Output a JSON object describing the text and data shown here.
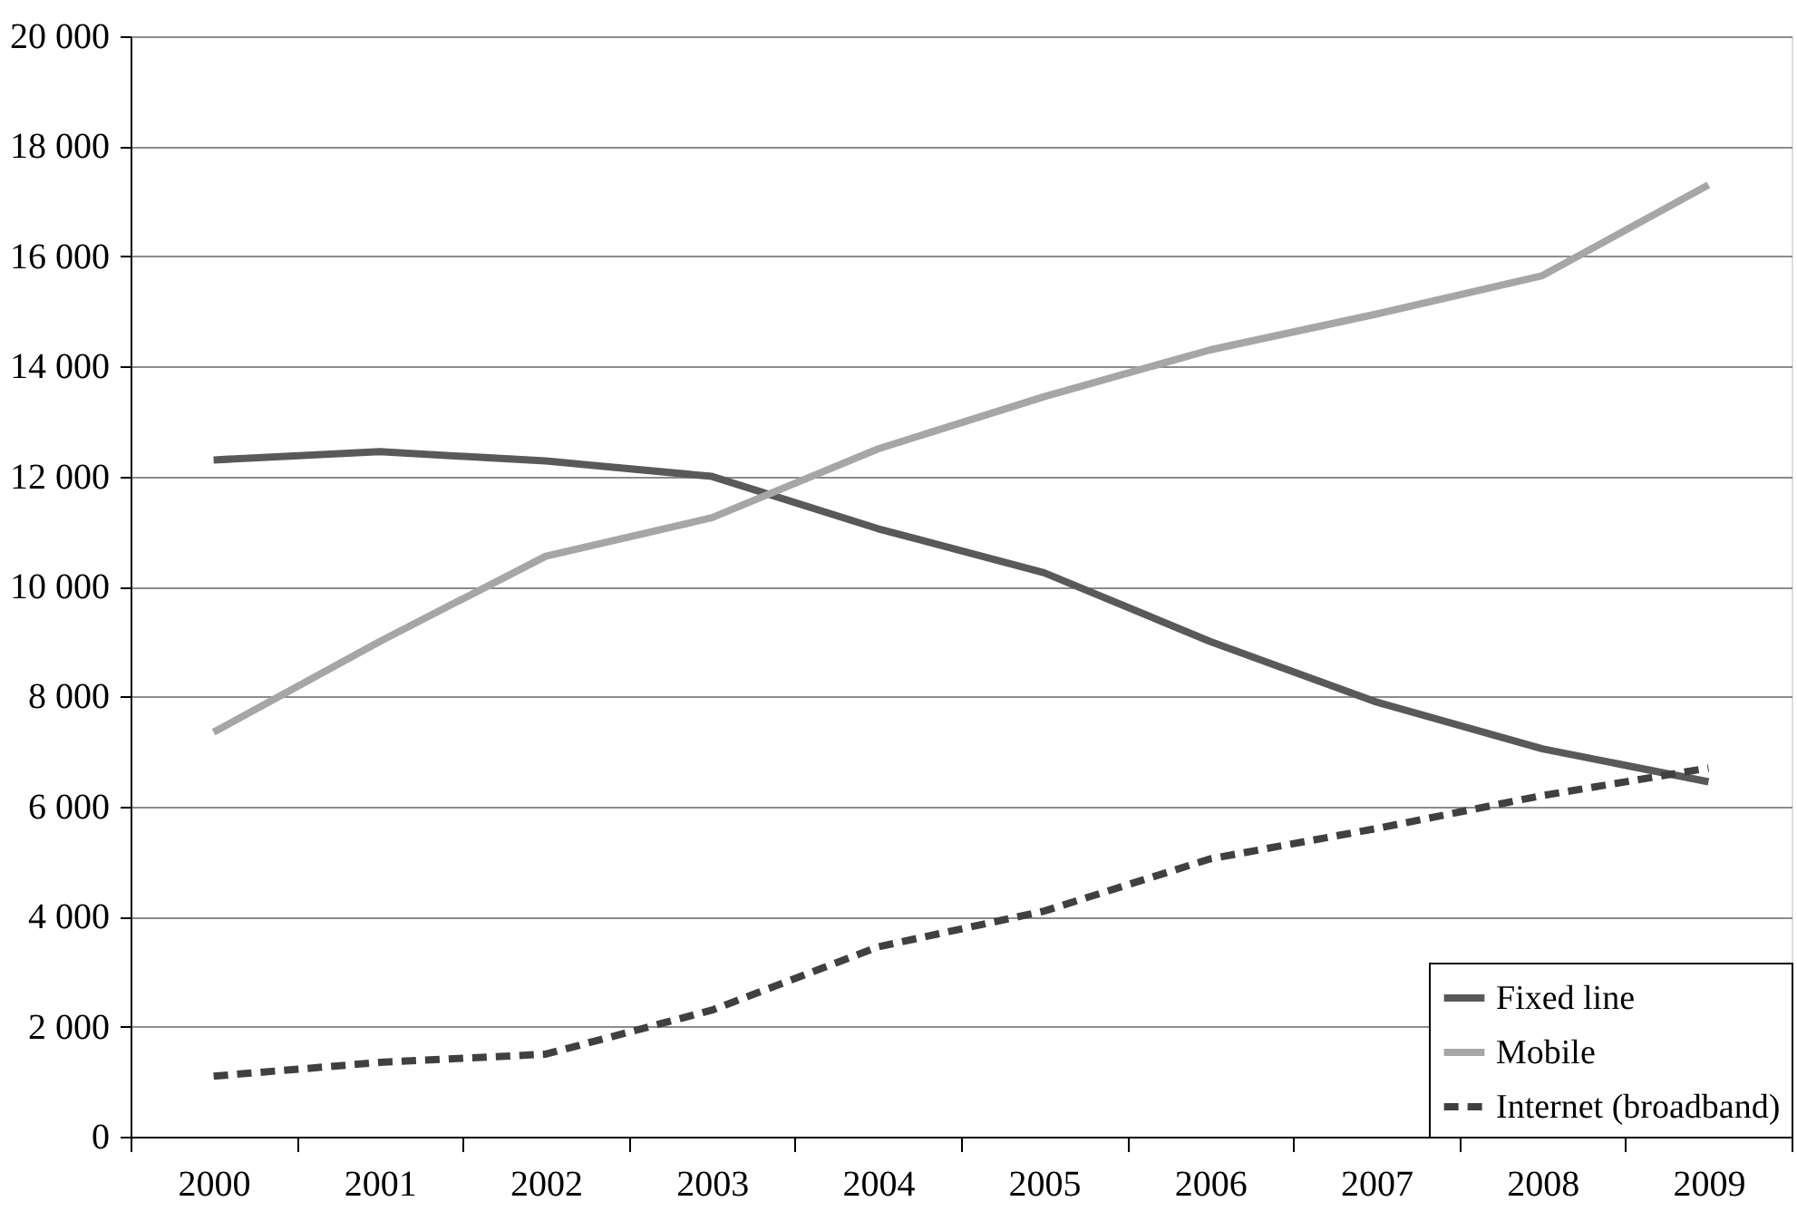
{
  "chart_data": {
    "type": "line",
    "categories": [
      "2000",
      "2001",
      "2002",
      "2003",
      "2004",
      "2005",
      "2006",
      "2007",
      "2008",
      "2009"
    ],
    "series": [
      {
        "name": "Fixed line",
        "color": "#595959",
        "line_style": "solid",
        "values": [
          12300,
          12450,
          12280,
          12000,
          11050,
          10250,
          9000,
          7900,
          7050,
          6450
        ]
      },
      {
        "name": "Mobile",
        "color": "#a6a6a6",
        "line_style": "solid",
        "values": [
          7350,
          9000,
          10550,
          11250,
          12500,
          13450,
          14300,
          14950,
          15650,
          17300
        ]
      },
      {
        "name": "Internet (broadband)",
        "color": "#404040",
        "line_style": "dashed",
        "values": [
          1100,
          1350,
          1500,
          2300,
          3450,
          4100,
          5050,
          5600,
          6200,
          6700
        ]
      }
    ],
    "ylim": [
      0,
      20000
    ],
    "yticks": [
      0,
      {
        "value": 2000,
        "label": "2 000"
      },
      {
        "value": 4000,
        "label": "4 000"
      },
      {
        "value": 6000,
        "label": "6 000"
      },
      {
        "value": 8000,
        "label": "8 000"
      },
      {
        "value": 10000,
        "label": "10 000"
      },
      {
        "value": 12000,
        "label": "12 000"
      },
      {
        "value": 14000,
        "label": "14 000"
      },
      {
        "value": 16000,
        "label": "16 000"
      },
      {
        "value": 18000,
        "label": "18 000"
      },
      {
        "value": 20000,
        "label": "20 000"
      }
    ],
    "grid": "y",
    "legend": "bottom right",
    "marker": "none"
  }
}
